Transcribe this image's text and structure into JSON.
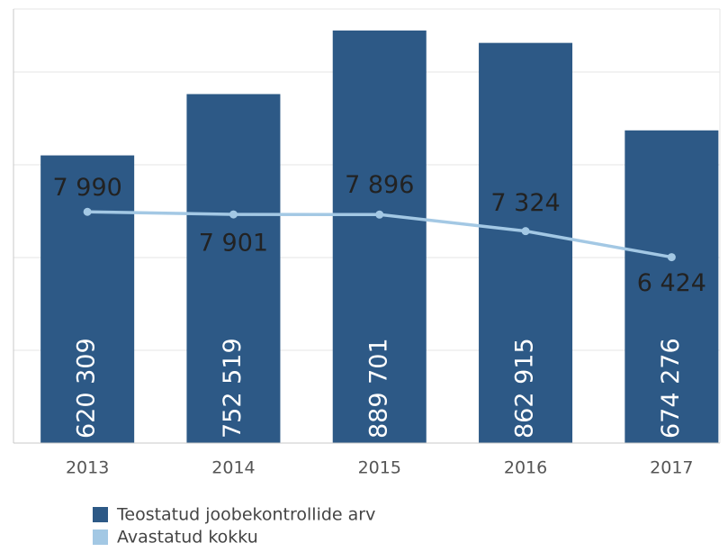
{
  "chart_data": {
    "type": "bar_line",
    "categories": [
      "2013",
      "2014",
      "2015",
      "2016",
      "2017"
    ],
    "series": [
      {
        "name": "Teostatud joobekontrollide arv",
        "color": "#2d5986",
        "type": "bar",
        "values": [
          620309,
          752519,
          889701,
          862915,
          674276
        ],
        "value_labels": [
          "620 309",
          "752 519",
          "889 701",
          "862 915",
          "674 276"
        ]
      },
      {
        "name": "Avastatud kokku",
        "color": "#a3c8e4",
        "type": "line",
        "axis": "y2",
        "values": [
          7990,
          7901,
          7896,
          7324,
          6424
        ],
        "value_labels": [
          "7 990",
          "7 901",
          "7 896",
          "7 324",
          "6 424"
        ]
      }
    ],
    "ylim": [
      0,
      936000
    ],
    "yticks": [
      0,
      200000,
      400000,
      600000,
      800000
    ],
    "y2lim": [
      0,
      15000
    ],
    "grid": true
  }
}
